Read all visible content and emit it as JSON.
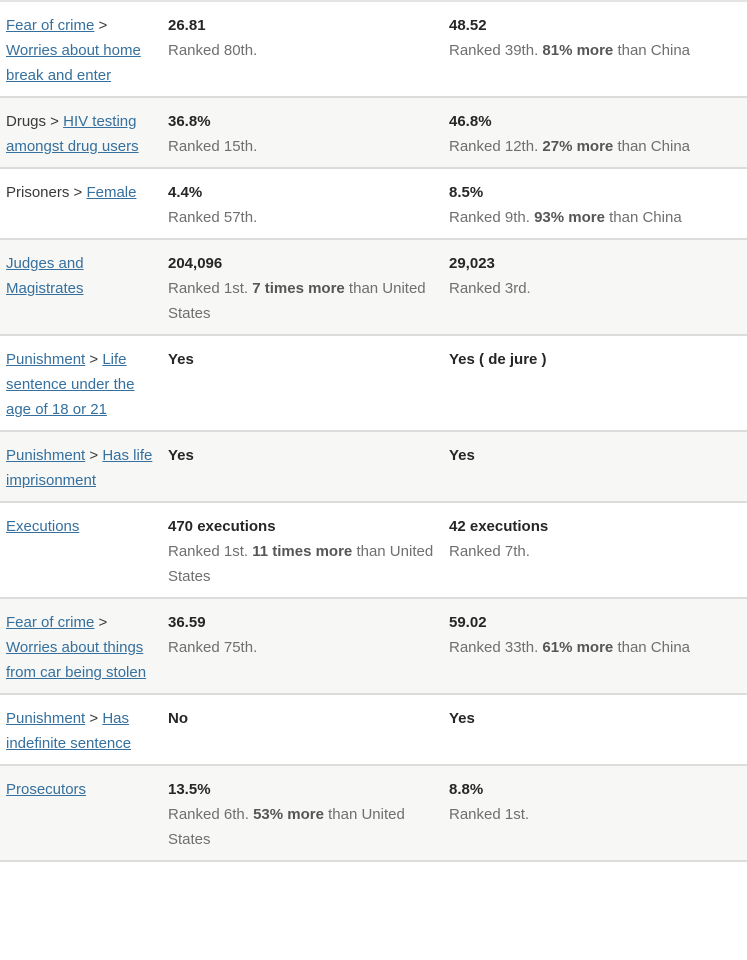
{
  "colors": {
    "link": "#35709e",
    "alt_row_bg": "#f7f7f5",
    "divider": "#dcdcda",
    "value_text": "#262626",
    "detail_text": "#6f6f6f",
    "detail_bold_text": "#565656"
  },
  "table": {
    "rows": [
      {
        "label": [
          {
            "text": "Fear of crime",
            "link": true
          },
          {
            "text": " > "
          },
          {
            "text": "Worries about home break and enter",
            "link": true
          }
        ],
        "cols": [
          {
            "value": "26.81",
            "detail": [
              {
                "text": "Ranked 80th."
              }
            ]
          },
          {
            "value": "48.52",
            "detail": [
              {
                "text": "Ranked 39th. "
              },
              {
                "text": "81% more",
                "bold": true
              },
              {
                "text": " than China"
              }
            ]
          }
        ]
      },
      {
        "label": [
          {
            "text": "Drugs"
          },
          {
            "text": " > "
          },
          {
            "text": "HIV testing amongst drug users",
            "link": true
          }
        ],
        "cols": [
          {
            "value": "36.8%",
            "detail": [
              {
                "text": "Ranked 15th."
              }
            ]
          },
          {
            "value": "46.8%",
            "detail": [
              {
                "text": "Ranked 12th. "
              },
              {
                "text": "27% more",
                "bold": true
              },
              {
                "text": " than China"
              }
            ]
          }
        ]
      },
      {
        "label": [
          {
            "text": "Prisoners"
          },
          {
            "text": " > "
          },
          {
            "text": "Female",
            "link": true
          }
        ],
        "cols": [
          {
            "value": "4.4%",
            "detail": [
              {
                "text": "Ranked 57th."
              }
            ]
          },
          {
            "value": "8.5%",
            "detail": [
              {
                "text": "Ranked 9th. "
              },
              {
                "text": "93% more",
                "bold": true
              },
              {
                "text": " than China"
              }
            ]
          }
        ]
      },
      {
        "label": [
          {
            "text": "Judges and Magistrates",
            "link": true
          }
        ],
        "cols": [
          {
            "value": "204,096",
            "detail": [
              {
                "text": "Ranked 1st. "
              },
              {
                "text": "7 times more",
                "bold": true
              },
              {
                "text": " than United States"
              }
            ]
          },
          {
            "value": "29,023",
            "detail": [
              {
                "text": "Ranked 3rd."
              }
            ]
          }
        ]
      },
      {
        "label": [
          {
            "text": "Punishment",
            "link": true
          },
          {
            "text": " > "
          },
          {
            "text": "Life sentence under the age of 18 or 21",
            "link": true
          }
        ],
        "cols": [
          {
            "value": "Yes",
            "detail": []
          },
          {
            "value": "Yes ( de jure )",
            "detail": []
          }
        ]
      },
      {
        "label": [
          {
            "text": "Punishment",
            "link": true
          },
          {
            "text": " > "
          },
          {
            "text": "Has life imprisonment",
            "link": true
          }
        ],
        "cols": [
          {
            "value": "Yes",
            "detail": []
          },
          {
            "value": "Yes",
            "detail": []
          }
        ]
      },
      {
        "label": [
          {
            "text": "Executions",
            "link": true
          }
        ],
        "cols": [
          {
            "value": "470 executions",
            "detail": [
              {
                "text": "Ranked 1st. "
              },
              {
                "text": "11 times more",
                "bold": true
              },
              {
                "text": " than United States"
              }
            ]
          },
          {
            "value": "42 executions",
            "detail": [
              {
                "text": "Ranked 7th."
              }
            ]
          }
        ]
      },
      {
        "label": [
          {
            "text": "Fear of crime",
            "link": true
          },
          {
            "text": " > "
          },
          {
            "text": "Worries about things from car being stolen",
            "link": true
          }
        ],
        "cols": [
          {
            "value": "36.59",
            "detail": [
              {
                "text": "Ranked 75th."
              }
            ]
          },
          {
            "value": "59.02",
            "detail": [
              {
                "text": "Ranked 33th. "
              },
              {
                "text": "61% more",
                "bold": true
              },
              {
                "text": " than China"
              }
            ]
          }
        ]
      },
      {
        "label": [
          {
            "text": "Punishment",
            "link": true
          },
          {
            "text": " > "
          },
          {
            "text": "Has indefinite sentence",
            "link": true
          }
        ],
        "cols": [
          {
            "value": "No",
            "detail": []
          },
          {
            "value": "Yes",
            "detail": []
          }
        ]
      },
      {
        "label": [
          {
            "text": "Prosecutors",
            "link": true
          }
        ],
        "cols": [
          {
            "value": "13.5%",
            "detail": [
              {
                "text": "Ranked 6th. "
              },
              {
                "text": "53% more",
                "bold": true
              },
              {
                "text": " than United States"
              }
            ]
          },
          {
            "value": "8.8%",
            "detail": [
              {
                "text": "Ranked 1st."
              }
            ]
          }
        ]
      }
    ]
  }
}
